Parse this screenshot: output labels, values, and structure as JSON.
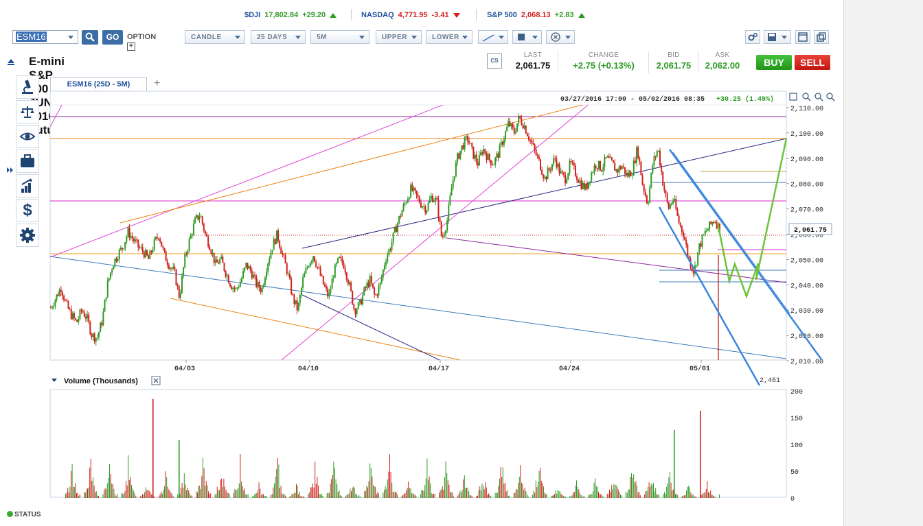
{
  "tickers": [
    {
      "symbol": "$DJI",
      "value": "17,802.84",
      "change": "+29.20",
      "dir": "up"
    },
    {
      "symbol": "NASDAQ",
      "value": "4,771.95",
      "change": "-3.41",
      "dir": "down"
    },
    {
      "symbol": "S&P 500",
      "value": "2,068.13",
      "change": "+2.83",
      "dir": "up"
    }
  ],
  "toolbar": {
    "symbol_value": "ESM16",
    "go_label": "GO",
    "option_label": "OPTION",
    "chart_type": "CANDLE",
    "range": "25 DAYS",
    "interval": "5M",
    "upper": "UPPER",
    "lower": "LOWER"
  },
  "instrument_title": "E-mini S&P 500 JUN 2016 Future",
  "quote": {
    "cs_label": "CS",
    "last_label": "LAST",
    "last": "2,061.75",
    "change_label": "CHANGE",
    "change": "+2.75 (+0.13%)",
    "bid_label": "BID",
    "bid": "2,061.75",
    "ask_label": "ASK",
    "ask": "2,062.00",
    "buy_label": "BUY",
    "sell_label": "SELL"
  },
  "tab": {
    "label": "ESM16 (25D - 5M)",
    "add": "+"
  },
  "chart_header": {
    "range": "03/27/2016 17:00 - 05/02/2016 08:35",
    "change": "+30.25 (1.49%)"
  },
  "volume_label": "Volume (Thousands)",
  "status_label": "STATUS",
  "colors": {
    "up": "#2e9a24",
    "down": "#d1201b",
    "accent": "#1b4f9c"
  },
  "chart_data": [
    {
      "type": "line",
      "name": "price",
      "x_tick_labels": [
        "04/03",
        "04/10",
        "04/17",
        "04/24",
        "05/01"
      ],
      "y_tick_labels": [
        "2,010.00",
        "2,020.00",
        "2,030.00",
        "2,040.00",
        "2,050.00",
        "2,060.00",
        "2,070.00",
        "2,080.00",
        "2,090.00",
        "2,100.00",
        "2,110.00"
      ],
      "ylim": [
        2010,
        2110
      ],
      "last_price_label": "2,061.75",
      "annotation": "2,461",
      "series": [
        {
          "values": [
            2031,
            2035,
            2039,
            2032,
            2028,
            2025,
            2030,
            2027,
            2020,
            2019,
            2026,
            2040,
            2048,
            2052,
            2055,
            2061,
            2058,
            2055,
            2053,
            2050,
            2056,
            2060,
            2052,
            2048,
            2045,
            2035,
            2050,
            2058,
            2065,
            2068,
            2060,
            2055,
            2048,
            2050,
            2045,
            2040,
            2038,
            2042,
            2048,
            2045,
            2040,
            2038,
            2048,
            2055,
            2060,
            2052,
            2045,
            2035,
            2030,
            2042,
            2048,
            2052,
            2046,
            2040,
            2035,
            2045,
            2050,
            2048,
            2040,
            2030,
            2032,
            2038,
            2042,
            2035,
            2040,
            2050,
            2055,
            2062,
            2068,
            2073,
            2078,
            2075,
            2072,
            2070,
            2075,
            2073,
            2058,
            2065,
            2080,
            2090,
            2095,
            2098,
            2092,
            2088,
            2094,
            2090,
            2088,
            2092,
            2098,
            2104,
            2100,
            2106,
            2103,
            2098,
            2093,
            2088,
            2082,
            2086,
            2090,
            2084,
            2082,
            2088,
            2084,
            2080,
            2078,
            2084,
            2088,
            2086,
            2090,
            2088,
            2085,
            2087,
            2083,
            2085,
            2094,
            2080,
            2072,
            2088,
            2094,
            2080,
            2070,
            2074,
            2065,
            2060,
            2050,
            2045,
            2055,
            2060,
            2063,
            2066,
            2062
          ]
        }
      ]
    },
    {
      "type": "bar",
      "name": "volume",
      "ylabel": "Volume (Thousands)",
      "y_tick_labels": [
        "0",
        "50",
        "100",
        "150",
        "200"
      ],
      "ylim": [
        0,
        200
      ],
      "spikes": [
        {
          "day": "near 04/01",
          "value": 185,
          "dir": "down"
        },
        {
          "day": "near 04/02",
          "value": 108,
          "dir": "up"
        },
        {
          "day": "near 04/29",
          "value": 127,
          "dir": "up"
        },
        {
          "day": "near 04/30",
          "value": 163,
          "dir": "down"
        }
      ]
    }
  ]
}
